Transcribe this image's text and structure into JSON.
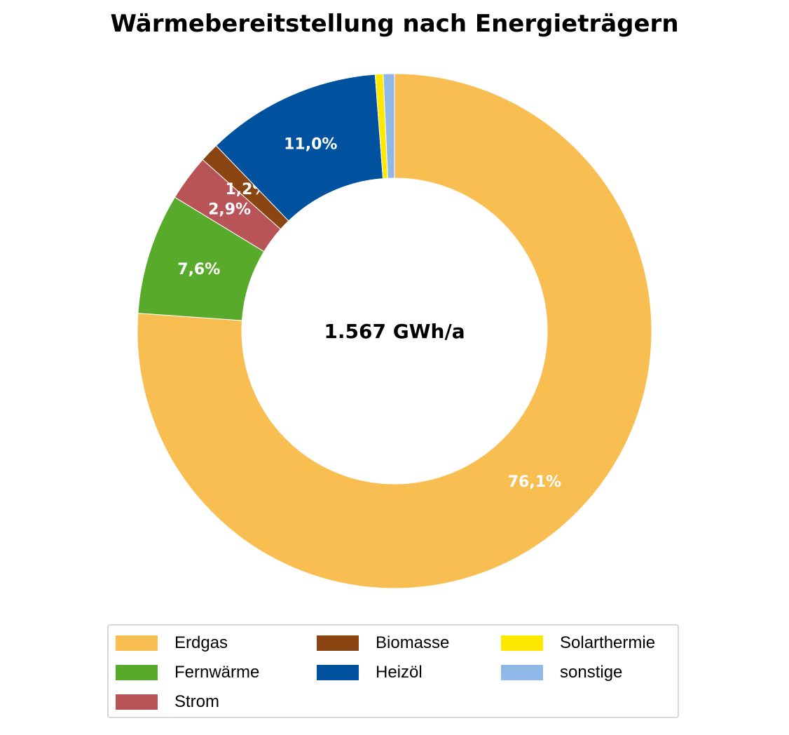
{
  "chart_data": {
    "type": "pie",
    "variant": "donut",
    "title": "Wärmebereitstellung nach Energieträgern",
    "center_label": "1.567 GWh/a",
    "slices": [
      {
        "name": "Erdgas",
        "value": 76.1,
        "label": "76,1%",
        "color": "#F9BE51"
      },
      {
        "name": "Fernwärme",
        "value": 7.6,
        "label": "7,6%",
        "color": "#58AA2A"
      },
      {
        "name": "Strom",
        "value": 2.9,
        "label": "2,9%",
        "color": "#B85357"
      },
      {
        "name": "Biomasse",
        "value": 1.2,
        "label": "1,2%",
        "color": "#8B4513"
      },
      {
        "name": "Heizöl",
        "value": 11.0,
        "label": "11,0%",
        "color": "#00529E"
      },
      {
        "name": "Solarthermie",
        "value": 0.5,
        "label": "",
        "color": "#FFE800"
      },
      {
        "name": "sonstige",
        "value": 0.7,
        "label": "",
        "color": "#8FB8E6"
      }
    ],
    "legend_placement": "bottom",
    "legend_order": [
      "Erdgas",
      "Biomasse",
      "Solarthermie",
      "Fernwärme",
      "Heizöl",
      "sonstige",
      "Strom"
    ]
  }
}
